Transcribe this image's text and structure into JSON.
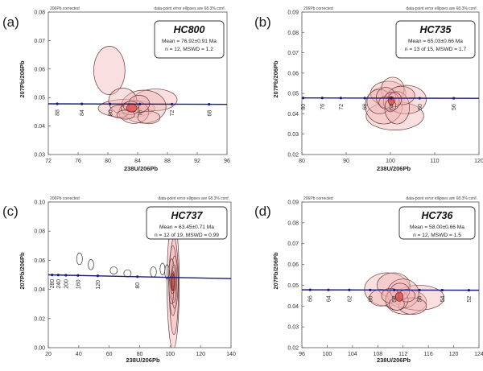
{
  "colors": {
    "ellipse_fill": "#f2b9b9",
    "ellipse_stroke": "#6b3a3a",
    "wm_fill": "#d94a4a",
    "concordia": "#1a1a7a",
    "open_ellipse": "#333333"
  },
  "chart_data": [
    {
      "id": "a",
      "type": "scatter",
      "panel_label": "(a)",
      "title": "HC800",
      "stat_lines": [
        "Mean = 76.92±0.91 Ma",
        "n = 12, MSWD = 1.2"
      ],
      "corner_left": "206Pb corrected",
      "corner_right": "data-point error ellipses are 68.3% conf.",
      "xlabel": "238U/206Pb",
      "ylabel": "207Pb/206Pb",
      "xlim": [
        72,
        96
      ],
      "ylim": [
        0.03,
        0.08
      ],
      "xticks": [
        72,
        76,
        80,
        84,
        88,
        92,
        96
      ],
      "yticks": [
        0.03,
        0.04,
        0.05,
        0.06,
        0.07,
        0.08
      ],
      "concordia": {
        "x": [
          72,
          96
        ],
        "y": [
          0.0478,
          0.0476
        ]
      },
      "age_ticks": [
        {
          "label": "88",
          "x": 73.2
        },
        {
          "label": "84",
          "x": 76.5
        },
        {
          "label": "80",
          "x": 80.3
        },
        {
          "label": "76",
          "x": 84.3
        },
        {
          "label": "72",
          "x": 88.6
        },
        {
          "label": "68",
          "x": 93.6
        }
      ],
      "ellipses": [
        {
          "cx": 80.2,
          "cy": 0.0595,
          "rx": 2.1,
          "ry": 0.0085,
          "rot": 0
        },
        {
          "cx": 82.5,
          "cy": 0.0462,
          "rx": 3.8,
          "ry": 0.0032,
          "rot": 0
        },
        {
          "cx": 86.4,
          "cy": 0.0492,
          "rx": 2.9,
          "ry": 0.0038,
          "rot": 0
        },
        {
          "cx": 84.8,
          "cy": 0.0468,
          "rx": 3.0,
          "ry": 0.0058,
          "rot": 0
        },
        {
          "cx": 82.0,
          "cy": 0.0488,
          "rx": 1.9,
          "ry": 0.0045,
          "rot": 0
        },
        {
          "cx": 83.5,
          "cy": 0.0449,
          "rx": 2.0,
          "ry": 0.004,
          "rot": 0
        },
        {
          "cx": 84.2,
          "cy": 0.0478,
          "rx": 1.4,
          "ry": 0.003,
          "rot": 0
        },
        {
          "cx": 81.5,
          "cy": 0.0451,
          "rx": 1.3,
          "ry": 0.0022,
          "rot": 0
        },
        {
          "cx": 83.0,
          "cy": 0.046,
          "rx": 1.2,
          "ry": 0.002,
          "rot": 0
        },
        {
          "cx": 85.5,
          "cy": 0.043,
          "rx": 1.5,
          "ry": 0.0022,
          "rot": 0
        },
        {
          "cx": 83.1,
          "cy": 0.0469,
          "rx": 1.0,
          "ry": 0.0018,
          "rot": 0
        },
        {
          "cx": 82.4,
          "cy": 0.044,
          "rx": 1.2,
          "ry": 0.0016,
          "rot": 0
        }
      ],
      "open_ellipses": [],
      "mean_ellipse": {
        "cx": 83.2,
        "cy": 0.0463,
        "rx": 0.7,
        "ry": 0.0014
      }
    },
    {
      "id": "b",
      "type": "scatter",
      "panel_label": "(b)",
      "title": "HC735",
      "stat_lines": [
        "Mean = 65.03±0.66 Ma",
        "n = 13 of 15, MSWD = 1.7"
      ],
      "corner_left": "206Pb corrected",
      "corner_right": "data-point error ellipses are 68.3% conf.",
      "xlabel": "238U/206Pb",
      "ylabel": "207Pb/206Pb",
      "xlim": [
        80,
        120
      ],
      "ylim": [
        0.02,
        0.09
      ],
      "xticks": [
        80,
        90,
        100,
        110,
        120
      ],
      "yticks": [
        0.02,
        0.03,
        0.04,
        0.05,
        0.06,
        0.07,
        0.08,
        0.09
      ],
      "concordia": {
        "x": [
          80,
          120
        ],
        "y": [
          0.0478,
          0.0476
        ]
      },
      "age_ticks": [
        {
          "label": "80",
          "x": 80.3
        },
        {
          "label": "76",
          "x": 84.6
        },
        {
          "label": "72",
          "x": 88.8
        },
        {
          "label": "68",
          "x": 94.2
        },
        {
          "label": "64",
          "x": 100.2
        },
        {
          "label": "60",
          "x": 106.6
        },
        {
          "label": "56",
          "x": 114.3
        }
      ],
      "ellipses": [
        {
          "cx": 101.0,
          "cy": 0.039,
          "rx": 6.5,
          "ry": 0.007,
          "rot": 0
        },
        {
          "cx": 98.5,
          "cy": 0.044,
          "rx": 4.2,
          "ry": 0.009,
          "rot": 0
        },
        {
          "cx": 99.5,
          "cy": 0.05,
          "rx": 4.0,
          "ry": 0.006,
          "rot": 0
        },
        {
          "cx": 103.5,
          "cy": 0.047,
          "rx": 4.6,
          "ry": 0.007,
          "rot": 0
        },
        {
          "cx": 100.5,
          "cy": 0.052,
          "rx": 2.6,
          "ry": 0.006,
          "rot": 0
        },
        {
          "cx": 97.5,
          "cy": 0.046,
          "rx": 2.8,
          "ry": 0.006,
          "rot": 0
        },
        {
          "cx": 101.5,
          "cy": 0.043,
          "rx": 2.8,
          "ry": 0.008,
          "rot": 0
        },
        {
          "cx": 102.5,
          "cy": 0.049,
          "rx": 3.0,
          "ry": 0.0045,
          "rot": 0
        },
        {
          "cx": 99.0,
          "cy": 0.048,
          "rx": 2.2,
          "ry": 0.005,
          "rot": 0
        },
        {
          "cx": 100.2,
          "cy": 0.046,
          "rx": 1.8,
          "ry": 0.0045,
          "rot": 0
        },
        {
          "cx": 101.0,
          "cy": 0.047,
          "rx": 1.5,
          "ry": 0.0035,
          "rot": 0
        },
        {
          "cx": 98.8,
          "cy": 0.0455,
          "rx": 1.4,
          "ry": 0.003,
          "rot": 0
        },
        {
          "cx": 100.0,
          "cy": 0.044,
          "rx": 1.2,
          "ry": 0.003,
          "rot": 0
        }
      ],
      "open_ellipses": [],
      "mean_ellipse": {
        "cx": 100.2,
        "cy": 0.0465,
        "rx": 0.7,
        "ry": 0.002
      }
    },
    {
      "id": "c",
      "type": "scatter",
      "panel_label": "(c)",
      "title": "HC737",
      "stat_lines": [
        "Mean = 63.45±0.71 Ma",
        "n = 12 of 19, MSWD = 0.99"
      ],
      "corner_left": "206Pb corrected",
      "corner_right": "data-point error ellipses are 68.3% conf.",
      "xlabel": "238U/206Pb",
      "ylabel": "207Pb/206Pb",
      "xlim": [
        20,
        140
      ],
      "ylim": [
        0.0,
        0.1
      ],
      "xticks": [
        20,
        40,
        60,
        80,
        100,
        120,
        140
      ],
      "yticks": [
        0.0,
        0.02,
        0.04,
        0.06,
        0.08,
        0.1
      ],
      "tick_decimals": 2,
      "concordia": {
        "x": [
          20,
          140
        ],
        "y": [
          0.05,
          0.0474
        ]
      },
      "age_ticks": [
        {
          "label": "280",
          "x": 22.5
        },
        {
          "label": "240",
          "x": 26.5
        },
        {
          "label": "200",
          "x": 31.5
        },
        {
          "label": "160",
          "x": 39.5
        },
        {
          "label": "120",
          "x": 52.5
        },
        {
          "label": "80",
          "x": 78.5
        }
      ],
      "ellipses": [
        {
          "cx": 102.0,
          "cy": 0.044,
          "rx": 4.0,
          "ry": 0.045,
          "rot": 0
        },
        {
          "cx": 102.5,
          "cy": 0.042,
          "rx": 3.0,
          "ry": 0.033,
          "rot": 0
        },
        {
          "cx": 101.8,
          "cy": 0.046,
          "rx": 2.6,
          "ry": 0.024,
          "rot": 0
        },
        {
          "cx": 103.0,
          "cy": 0.045,
          "rx": 2.2,
          "ry": 0.018,
          "rot": 0
        },
        {
          "cx": 101.0,
          "cy": 0.047,
          "rx": 2.0,
          "ry": 0.014,
          "rot": 0
        },
        {
          "cx": 102.2,
          "cy": 0.043,
          "rx": 1.8,
          "ry": 0.012,
          "rot": 0
        },
        {
          "cx": 100.8,
          "cy": 0.04,
          "rx": 1.6,
          "ry": 0.01,
          "rot": 0
        },
        {
          "cx": 102.6,
          "cy": 0.048,
          "rx": 1.5,
          "ry": 0.009,
          "rot": 0
        },
        {
          "cx": 101.5,
          "cy": 0.045,
          "rx": 1.3,
          "ry": 0.008,
          "rot": 0
        },
        {
          "cx": 102.0,
          "cy": 0.046,
          "rx": 1.1,
          "ry": 0.006,
          "rot": 0
        },
        {
          "cx": 101.7,
          "cy": 0.044,
          "rx": 1.0,
          "ry": 0.005,
          "rot": 0
        },
        {
          "cx": 102.3,
          "cy": 0.0455,
          "rx": 0.9,
          "ry": 0.004,
          "rot": 0
        }
      ],
      "open_ellipses": [
        {
          "cx": 40.5,
          "cy": 0.061,
          "rx": 1.9,
          "ry": 0.004
        },
        {
          "cx": 48.0,
          "cy": 0.057,
          "rx": 1.8,
          "ry": 0.0035
        },
        {
          "cx": 63.0,
          "cy": 0.053,
          "rx": 2.4,
          "ry": 0.0025
        },
        {
          "cx": 72.0,
          "cy": 0.051,
          "rx": 2.4,
          "ry": 0.0025
        },
        {
          "cx": 89.0,
          "cy": 0.052,
          "rx": 2.0,
          "ry": 0.0035
        },
        {
          "cx": 95.0,
          "cy": 0.054,
          "rx": 1.6,
          "ry": 0.004
        },
        {
          "cx": 98.0,
          "cy": 0.052,
          "rx": 1.5,
          "ry": 0.005
        }
      ],
      "mean_ellipse": {
        "cx": 101.8,
        "cy": 0.045,
        "rx": 0.8,
        "ry": 0.006
      }
    },
    {
      "id": "d",
      "type": "scatter",
      "panel_label": "(d)",
      "title": "HC736",
      "stat_lines": [
        "Mean = 58.00±0.66 Ma",
        "n = 12, MSWD = 1.5"
      ],
      "corner_left": "206Pb corrected",
      "corner_right": "data-point error ellipses are 68.3% conf.",
      "xlabel": "238U/206Pb",
      "ylabel": "207Pb/206Pb",
      "xlim": [
        96,
        124
      ],
      "ylim": [
        0.02,
        0.09
      ],
      "xticks": [
        96,
        100,
        104,
        108,
        112,
        116,
        120,
        124
      ],
      "yticks": [
        0.02,
        0.03,
        0.04,
        0.05,
        0.06,
        0.07,
        0.08,
        0.09
      ],
      "concordia": {
        "x": [
          96,
          124
        ],
        "y": [
          0.0478,
          0.0476
        ]
      },
      "age_ticks": [
        {
          "label": "66",
          "x": 97.3
        },
        {
          "label": "64",
          "x": 100.2
        },
        {
          "label": "62",
          "x": 103.5
        },
        {
          "label": "60",
          "x": 106.8
        },
        {
          "label": "58",
          "x": 110.6
        },
        {
          "label": "56",
          "x": 114.6
        },
        {
          "label": "54",
          "x": 118.2
        },
        {
          "label": "52",
          "x": 122.4
        }
      ],
      "ellipses": [
        {
          "cx": 109.5,
          "cy": 0.048,
          "rx": 3.6,
          "ry": 0.008,
          "rot": 0
        },
        {
          "cx": 112.5,
          "cy": 0.042,
          "rx": 3.2,
          "ry": 0.006,
          "rot": 0
        },
        {
          "cx": 114.5,
          "cy": 0.044,
          "rx": 4.0,
          "ry": 0.006,
          "rot": 0
        },
        {
          "cx": 110.5,
          "cy": 0.05,
          "rx": 2.6,
          "ry": 0.006,
          "rot": 0
        },
        {
          "cx": 112.0,
          "cy": 0.046,
          "rx": 2.5,
          "ry": 0.007,
          "rot": 0
        },
        {
          "cx": 108.5,
          "cy": 0.044,
          "rx": 1.8,
          "ry": 0.004,
          "rot": 0
        },
        {
          "cx": 113.5,
          "cy": 0.04,
          "rx": 2.2,
          "ry": 0.004,
          "rot": 0
        },
        {
          "cx": 111.0,
          "cy": 0.043,
          "rx": 1.8,
          "ry": 0.005,
          "rot": 0
        },
        {
          "cx": 111.5,
          "cy": 0.047,
          "rx": 1.5,
          "ry": 0.004,
          "rot": 0
        },
        {
          "cx": 110.0,
          "cy": 0.045,
          "rx": 1.4,
          "ry": 0.0035,
          "rot": 0
        },
        {
          "cx": 112.6,
          "cy": 0.045,
          "rx": 1.3,
          "ry": 0.003,
          "rot": 0
        },
        {
          "cx": 111.0,
          "cy": 0.041,
          "rx": 1.2,
          "ry": 0.003,
          "rot": 0
        }
      ],
      "open_ellipses": [],
      "mean_ellipse": {
        "cx": 111.4,
        "cy": 0.0445,
        "rx": 0.6,
        "ry": 0.0022
      }
    }
  ]
}
